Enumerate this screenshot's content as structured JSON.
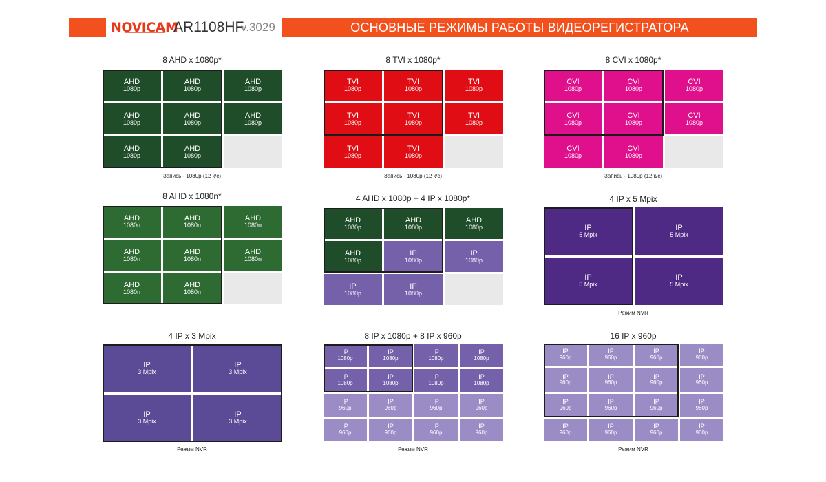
{
  "header": {
    "logo": "NOVICAM",
    "model": "AR1108HF",
    "version": "v.3029",
    "title": "ОСНОВНЫЕ РЕЖИМЫ РАБОТЫ ВИДЕОРЕГИСТРАТОРА"
  },
  "colors": {
    "accent": "#f2501c",
    "ahd_dark": "#1f4d2a",
    "ahd_light": "#2e6b33",
    "tvi": "#e00d15",
    "cvi": "#e0108c",
    "ip_nvr": "#4f2a84",
    "ip_3mpix": "#5b4a96",
    "ip_mid": "#7561aa",
    "ip_light": "#9b8cc6",
    "empty": "#e9e9e9"
  },
  "modes": [
    {
      "title": "8 AHD x 1080p*",
      "caption": "Запись - 1080p (12 к/с)",
      "cols": 3,
      "color": "#1f4d2a",
      "cells": [
        [
          "AHD",
          "1080p"
        ],
        [
          "AHD",
          "1080p"
        ],
        [
          "AHD",
          "1080p"
        ],
        [
          "AHD",
          "1080p"
        ],
        [
          "AHD",
          "1080p"
        ],
        [
          "AHD",
          "1080p"
        ],
        [
          "AHD",
          "1080p"
        ],
        [
          "AHD",
          "1080p"
        ],
        null
      ]
    },
    {
      "title": "8 TVI x 1080p*",
      "caption": "Запись - 1080p (12 к/с)",
      "cols": 3,
      "color": "#e00d15",
      "cells": [
        [
          "TVI",
          "1080p"
        ],
        [
          "TVI",
          "1080p"
        ],
        [
          "TVI",
          "1080p"
        ],
        [
          "TVI",
          "1080p"
        ],
        [
          "TVI",
          "1080p"
        ],
        [
          "TVI",
          "1080p"
        ],
        [
          "TVI",
          "1080p"
        ],
        [
          "TVI",
          "1080p"
        ],
        null
      ]
    },
    {
      "title": "8 CVI x 1080p*",
      "caption": "Запись - 1080p (12 к/с)",
      "cols": 3,
      "color": "#e0108c",
      "cells": [
        [
          "CVI",
          "1080p"
        ],
        [
          "CVI",
          "1080p"
        ],
        [
          "CVI",
          "1080p"
        ],
        [
          "CVI",
          "1080p"
        ],
        [
          "CVI",
          "1080p"
        ],
        [
          "CVI",
          "1080p"
        ],
        [
          "CVI",
          "1080p"
        ],
        [
          "CVI",
          "1080p"
        ],
        null
      ]
    },
    {
      "title": "8 AHD x 1080n*",
      "caption": "",
      "cols": 3,
      "color": "#2e6b33",
      "cells": [
        [
          "AHD",
          "1080n"
        ],
        [
          "AHD",
          "1080n"
        ],
        [
          "AHD",
          "1080n"
        ],
        [
          "AHD",
          "1080n"
        ],
        [
          "AHD",
          "1080n"
        ],
        [
          "AHD",
          "1080n"
        ],
        [
          "AHD",
          "1080n"
        ],
        [
          "AHD",
          "1080n"
        ],
        null
      ]
    },
    {
      "title": "4 AHD x 1080p + 4 IP x 1080p*",
      "caption": "",
      "cols": 3,
      "colors": [
        "#1f4d2a",
        "#1f4d2a",
        "#1f4d2a",
        "#1f4d2a",
        "#7561aa",
        "#7561aa",
        "#7561aa",
        "#7561aa",
        "#e9e9e9"
      ],
      "cells": [
        [
          "AHD",
          "1080p"
        ],
        [
          "AHD",
          "1080p"
        ],
        [
          "AHD",
          "1080p"
        ],
        [
          "AHD",
          "1080p"
        ],
        [
          "IP",
          "1080p"
        ],
        [
          "IP",
          "1080p"
        ],
        [
          "IP",
          "1080p"
        ],
        [
          "IP",
          "1080p"
        ],
        null
      ]
    },
    {
      "title": "4 IP x 5 Mpix",
      "caption": "Режим NVR",
      "cols": 2,
      "color": "#4f2a84",
      "cells": [
        [
          "IP",
          "5 Mpix"
        ],
        [
          "IP",
          "5 Mpix"
        ],
        [
          "IP",
          "5 Mpix"
        ],
        [
          "IP",
          "5 Mpix"
        ]
      ]
    },
    {
      "title": "4 IP x 3 Mpix",
      "caption": "Режим NVR",
      "cols": 2,
      "color": "#5b4a96",
      "cells": [
        [
          "IP",
          "3 Mpix"
        ],
        [
          "IP",
          "3 Mpix"
        ],
        [
          "IP",
          "3 Mpix"
        ],
        [
          "IP",
          "3 Mpix"
        ]
      ]
    },
    {
      "title": "8 IP x 1080p + 8 IP x 960p",
      "caption": "Режим NVR",
      "cols": 4,
      "colors": [
        "#7561aa",
        "#7561aa",
        "#7561aa",
        "#7561aa",
        "#7561aa",
        "#7561aa",
        "#7561aa",
        "#7561aa",
        "#9b8cc6",
        "#9b8cc6",
        "#9b8cc6",
        "#9b8cc6",
        "#9b8cc6",
        "#9b8cc6",
        "#9b8cc6",
        "#9b8cc6"
      ],
      "cells": [
        [
          "IP",
          "1080p"
        ],
        [
          "IP",
          "1080p"
        ],
        [
          "IP",
          "1080p"
        ],
        [
          "IP",
          "1080p"
        ],
        [
          "IP",
          "1080p"
        ],
        [
          "IP",
          "1080p"
        ],
        [
          "IP",
          "1080p"
        ],
        [
          "IP",
          "1080p"
        ],
        [
          "IP",
          "960p"
        ],
        [
          "IP",
          "960p"
        ],
        [
          "IP",
          "960p"
        ],
        [
          "IP",
          "960p"
        ],
        [
          "IP",
          "960p"
        ],
        [
          "IP",
          "960p"
        ],
        [
          "IP",
          "960p"
        ],
        [
          "IP",
          "960p"
        ]
      ]
    },
    {
      "title": "16 IP x 960p",
      "caption": "Режим NVR",
      "cols": 4,
      "color": "#9b8cc6",
      "cells": [
        [
          "IP",
          "960p"
        ],
        [
          "IP",
          "960p"
        ],
        [
          "IP",
          "960p"
        ],
        [
          "IP",
          "960p"
        ],
        [
          "IP",
          "960p"
        ],
        [
          "IP",
          "960p"
        ],
        [
          "IP",
          "960p"
        ],
        [
          "IP",
          "960p"
        ],
        [
          "IP",
          "960p"
        ],
        [
          "IP",
          "960p"
        ],
        [
          "IP",
          "960p"
        ],
        [
          "IP",
          "960p"
        ],
        [
          "IP",
          "960p"
        ],
        [
          "IP",
          "960p"
        ],
        [
          "IP",
          "960p"
        ],
        [
          "IP",
          "960p"
        ]
      ]
    }
  ]
}
